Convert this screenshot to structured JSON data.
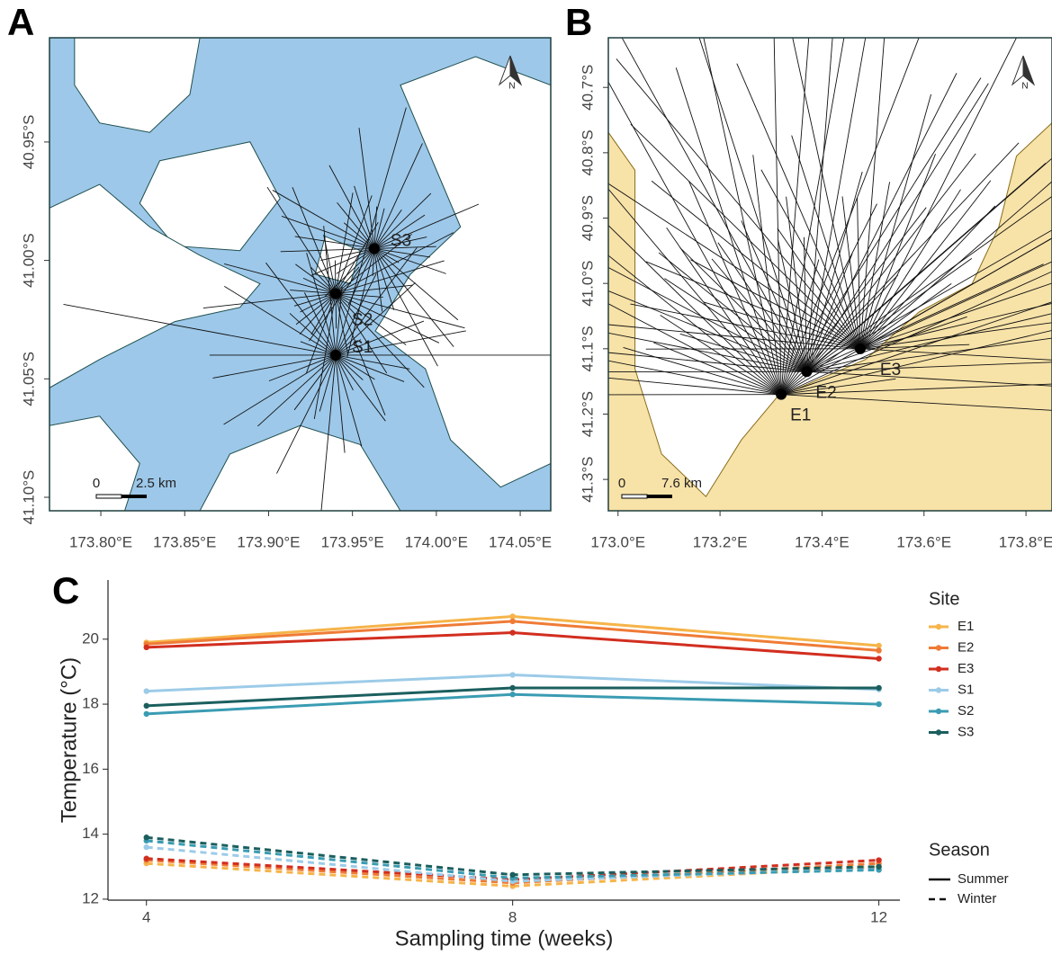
{
  "chart_data": [
    {
      "type": "map",
      "label": "A",
      "north": "N",
      "background": "#9dc8e9",
      "foreground": "#ffffff",
      "coast": "#1f4f4f",
      "xlim": [
        173.7694,
        174.0682
      ],
      "ylim": [
        -41.1057,
        -40.906
      ],
      "xticks": [
        {
          "value": 173.8,
          "label": "173.80°E"
        },
        {
          "value": 173.85,
          "label": "173.85°E"
        },
        {
          "value": 173.9,
          "label": "173.90°E"
        },
        {
          "value": 173.95,
          "label": "173.95°E"
        },
        {
          "value": 174.0,
          "label": "174.00°E"
        },
        {
          "value": 174.05,
          "label": "174.05°E"
        }
      ],
      "yticks": [
        {
          "value": -41.1,
          "label": "41.10°S"
        },
        {
          "value": -41.05,
          "label": "41.05°S"
        },
        {
          "value": -41.0,
          "label": "41.00°S"
        },
        {
          "value": -40.95,
          "label": "40.95°S"
        }
      ],
      "sites": [
        {
          "name": "S1",
          "lon": 173.94,
          "lat": -41.04
        },
        {
          "name": "S2",
          "lon": 173.94,
          "lat": -41.014
        },
        {
          "name": "S3",
          "lon": 173.963,
          "lat": -40.995
        }
      ],
      "scale_bar": {
        "zero": "0",
        "length": "2.5 km"
      }
    },
    {
      "type": "map",
      "label": "B",
      "north": "N",
      "background": "#ffffff",
      "foreground": "#f7e2a8",
      "coast": "#8a6d1a",
      "xlim": [
        172.981,
        173.851
      ],
      "ylim": [
        -41.348,
        -40.624
      ],
      "xticks": [
        {
          "value": 173.0,
          "label": "173.0°E"
        },
        {
          "value": 173.2,
          "label": "173.2°E"
        },
        {
          "value": 173.4,
          "label": "173.4°E"
        },
        {
          "value": 173.6,
          "label": "173.6°E"
        },
        {
          "value": 173.8,
          "label": "173.8°E"
        }
      ],
      "yticks": [
        {
          "value": -41.3,
          "label": "41.3°S"
        },
        {
          "value": -41.2,
          "label": "41.2°S"
        },
        {
          "value": -41.1,
          "label": "41.1°S"
        },
        {
          "value": -41.0,
          "label": "41.0°S"
        },
        {
          "value": -40.9,
          "label": "40.9°S"
        },
        {
          "value": -40.8,
          "label": "40.8°S"
        },
        {
          "value": -40.7,
          "label": "40.7°S"
        }
      ],
      "sites": [
        {
          "name": "E1",
          "lon": 173.32,
          "lat": -41.17
        },
        {
          "name": "E2",
          "lon": 173.37,
          "lat": -41.135
        },
        {
          "name": "E3",
          "lon": 173.475,
          "lat": -41.1
        }
      ],
      "scale_bar": {
        "zero": "0",
        "length": "7.6 km"
      }
    },
    {
      "type": "line",
      "label": "C",
      "x_label": "Sampling time (weeks)",
      "y_label": "Temperature (°C)",
      "x": [
        4,
        8,
        12
      ],
      "xlim": [
        3.58,
        12.23
      ],
      "xticks": [
        4,
        8,
        12
      ],
      "ylim": [
        11.97,
        21.82
      ],
      "yticks": [
        12,
        14,
        16,
        18,
        20
      ],
      "site_title": "Site",
      "season_title": "Season",
      "sites": [
        {
          "name": "E1",
          "color": "#f6b44a"
        },
        {
          "name": "E2",
          "color": "#ef7b36"
        },
        {
          "name": "E3",
          "color": "#d22e1f"
        },
        {
          "name": "S1",
          "color": "#9ccbe8"
        },
        {
          "name": "S2",
          "color": "#3a9cb2"
        },
        {
          "name": "S3",
          "color": "#1b5f5e"
        }
      ],
      "seasons": [
        {
          "name": "Summer",
          "dash": "none",
          "values": [
            [
              19.9,
              20.7,
              19.8
            ],
            [
              19.85,
              20.55,
              19.65
            ],
            [
              19.75,
              20.2,
              19.4
            ],
            [
              18.4,
              18.9,
              18.45
            ],
            [
              17.7,
              18.3,
              18.0
            ],
            [
              17.95,
              18.5,
              18.5
            ]
          ]
        },
        {
          "name": "Winter",
          "dash": "7 5",
          "values": [
            [
              13.1,
              12.4,
              13.0
            ],
            [
              13.2,
              12.5,
              13.1
            ],
            [
              13.25,
              12.6,
              13.2
            ],
            [
              13.6,
              12.55,
              12.95
            ],
            [
              13.8,
              12.65,
              12.9
            ],
            [
              13.9,
              12.75,
              13.0
            ]
          ]
        }
      ]
    }
  ]
}
